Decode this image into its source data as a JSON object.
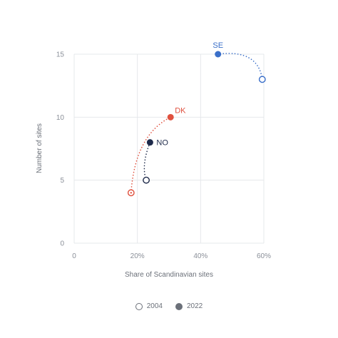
{
  "chart_data": {
    "type": "scatter",
    "xlabel": "Share of Scandinavian sites",
    "ylabel": "Number of sites",
    "xlim": [
      0,
      0.6
    ],
    "ylim": [
      0,
      15
    ],
    "x_ticks": [
      {
        "value": 0,
        "label": "0"
      },
      {
        "value": 0.2,
        "label": "20%"
      },
      {
        "value": 0.4,
        "label": "40%"
      },
      {
        "value": 0.6,
        "label": "60%"
      }
    ],
    "y_ticks": [
      {
        "value": 0,
        "label": "0"
      },
      {
        "value": 5,
        "label": "5"
      },
      {
        "value": 10,
        "label": "10"
      },
      {
        "value": 15,
        "label": "15"
      }
    ],
    "grid": true,
    "legend": {
      "placement": "bottom",
      "entries": [
        {
          "label": "2004",
          "marker": "open"
        },
        {
          "label": "2022",
          "marker": "filled"
        }
      ]
    },
    "series": [
      {
        "name": "SE",
        "color": "#3a6fc9",
        "x2004": 0.595,
        "y2004": 13,
        "x2022": 0.455,
        "y2022": 15
      },
      {
        "name": "DK",
        "color": "#e0513f",
        "x2004": 0.18,
        "y2004": 4,
        "x2022": 0.305,
        "y2022": 10
      },
      {
        "name": "NO",
        "color": "#1e2a4a",
        "x2004": 0.228,
        "y2004": 5,
        "x2022": 0.24,
        "y2022": 8
      }
    ]
  }
}
